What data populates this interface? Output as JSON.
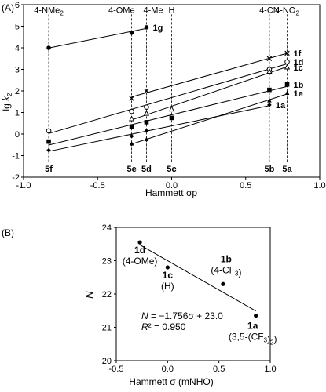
{
  "chart_data": [
    {
      "panel_label": "(A)",
      "type": "line",
      "xlabel": "Hammett σp",
      "ylabel": "lg k2",
      "xlim": [
        -1.0,
        1.0
      ],
      "ylim": [
        -2,
        6
      ],
      "xticks": [
        -1.0,
        -0.5,
        0.0,
        0.5,
        1.0
      ],
      "xtick_labels": [
        "-1.0",
        "-0.5",
        "0.0",
        "0.5",
        "1.0"
      ],
      "yticks": [
        -2,
        -1,
        0,
        1,
        2,
        3,
        4,
        5,
        6
      ],
      "ytick_labels": [
        "-2",
        "-1",
        "0",
        "1",
        "2",
        "3",
        "4",
        "5",
        "6"
      ],
      "substituents": [
        {
          "label": "4-NMe2",
          "sigma": -0.83,
          "compound": "5f"
        },
        {
          "label": "4-OMe",
          "sigma": -0.27,
          "compound": "5e"
        },
        {
          "label": "4-Me",
          "sigma": -0.17,
          "compound": "5d"
        },
        {
          "label": "H",
          "sigma": 0.0,
          "compound": "5c"
        },
        {
          "label": "4-CN",
          "sigma": 0.66,
          "compound": "5b"
        },
        {
          "label": "4-NO2",
          "sigma": 0.78,
          "compound": "5a"
        }
      ],
      "series": [
        {
          "name": "1g",
          "marker": "filled-circle",
          "x": [
            -0.83,
            -0.27,
            -0.17
          ],
          "y": [
            4.0,
            4.7,
            4.95
          ]
        },
        {
          "name": "1f",
          "marker": "x",
          "x": [
            -0.27,
            -0.17,
            0.66,
            0.78
          ],
          "y": [
            1.65,
            2.0,
            3.5,
            3.75
          ]
        },
        {
          "name": "1d",
          "marker": "open-circle",
          "x": [
            -0.83,
            -0.27,
            -0.17,
            0.66,
            0.78
          ],
          "y": [
            0.15,
            1.05,
            1.25,
            3.0,
            3.35
          ]
        },
        {
          "name": "1c",
          "marker": "open-triangle",
          "x": [
            -0.27,
            -0.17,
            0.0,
            0.66,
            0.78
          ],
          "y": [
            0.7,
            0.95,
            1.15,
            2.9,
            3.1
          ]
        },
        {
          "name": "1b",
          "marker": "filled-square",
          "x": [
            -0.83,
            -0.27,
            -0.17,
            0.0,
            0.66,
            0.78
          ],
          "y": [
            -0.35,
            0.35,
            0.55,
            0.75,
            2.05,
            2.3
          ]
        },
        {
          "name": "1e",
          "marker": "filled-triangle",
          "x": [
            -0.27,
            -0.17,
            0.66,
            0.78
          ],
          "y": [
            -0.45,
            -0.25,
            1.55,
            1.9
          ]
        },
        {
          "name": "1a",
          "marker": "filled-diamond",
          "x": [
            -0.83,
            -0.27,
            -0.17,
            0.66
          ],
          "y": [
            -0.75,
            -0.1,
            0.15,
            1.35
          ]
        }
      ]
    },
    {
      "panel_label": "(B)",
      "type": "scatter",
      "xlabel": "Hammett σ (mNHO)",
      "ylabel": "N",
      "xlim": [
        -0.5,
        1.0
      ],
      "ylim": [
        20,
        24
      ],
      "xticks": [
        -0.5,
        0.0,
        0.5,
        1.0
      ],
      "xtick_labels": [
        "-0.5",
        "0.0",
        "0.5",
        "1.0"
      ],
      "yticks": [
        20,
        21,
        22,
        23,
        24
      ],
      "ytick_labels": [
        "20",
        "21",
        "22",
        "23",
        "24"
      ],
      "points": [
        {
          "id": "1d",
          "sub": "(4-OMe)",
          "x": -0.27,
          "y": 23.55
        },
        {
          "id": "1c",
          "sub": "(H)",
          "x": 0.0,
          "y": 22.8
        },
        {
          "id": "1b",
          "sub": "(4-CF3)",
          "x": 0.54,
          "y": 22.3
        },
        {
          "id": "1a",
          "sub": "(3,5-(CF3)2)",
          "x": 0.86,
          "y": 21.35
        }
      ],
      "fit": {
        "slope": -1.756,
        "intercept": 23.0,
        "r2": 0.95
      },
      "equation": "N = −1.756σ + 23.0",
      "r2_label": "R² = 0.950"
    }
  ]
}
